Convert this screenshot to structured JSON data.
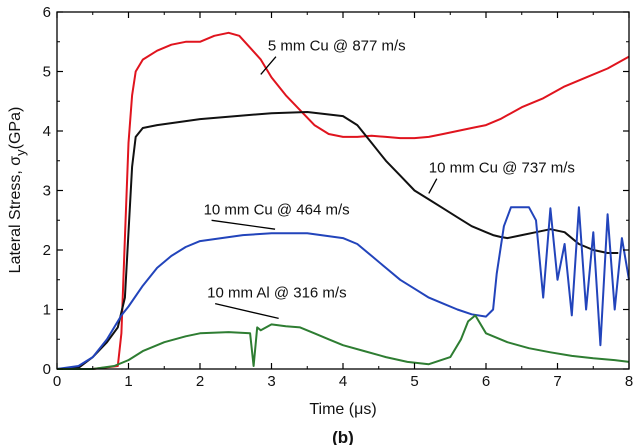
{
  "chart_data": {
    "type": "line",
    "xlabel": "Time (μs)",
    "ylabel": "Lateral Stress, σ",
    "ylabel_sub": "y",
    "ylabel_unit": "(GPa)",
    "xlim": [
      0,
      8
    ],
    "ylim": [
      0,
      6
    ],
    "x_ticks": [
      "0",
      "1",
      "2",
      "3",
      "4",
      "5",
      "6",
      "7",
      "8"
    ],
    "y_ticks": [
      "0",
      "1",
      "2",
      "3",
      "4",
      "5",
      "6"
    ],
    "panel_label": "(b)",
    "grid": false,
    "series": [
      {
        "name": "5 mm Cu @ 877 m/s",
        "color": "#e0141e",
        "x": [
          0,
          0.5,
          0.85,
          0.9,
          0.95,
          1.0,
          1.05,
          1.1,
          1.2,
          1.4,
          1.6,
          1.8,
          2.0,
          2.2,
          2.4,
          2.55,
          2.7,
          2.85,
          3.0,
          3.2,
          3.4,
          3.6,
          3.8,
          4.0,
          4.2,
          4.4,
          4.6,
          4.8,
          5.0,
          5.2,
          5.4,
          5.6,
          5.8,
          6.0,
          6.2,
          6.5,
          6.8,
          7.1,
          7.4,
          7.7,
          8.0
        ],
        "y": [
          0,
          0,
          0.05,
          0.6,
          2.2,
          3.8,
          4.6,
          5.0,
          5.2,
          5.35,
          5.45,
          5.5,
          5.5,
          5.6,
          5.65,
          5.6,
          5.4,
          5.2,
          4.9,
          4.6,
          4.35,
          4.1,
          3.95,
          3.9,
          3.9,
          3.92,
          3.9,
          3.88,
          3.88,
          3.9,
          3.95,
          4.0,
          4.05,
          4.1,
          4.2,
          4.4,
          4.55,
          4.75,
          4.9,
          5.05,
          5.25
        ]
      },
      {
        "name": "10 mm Cu @ 737 m/s",
        "color": "#111111",
        "x": [
          0,
          0.3,
          0.5,
          0.7,
          0.85,
          0.95,
          1.0,
          1.05,
          1.1,
          1.2,
          1.4,
          1.7,
          2.0,
          2.5,
          3.0,
          3.5,
          4.0,
          4.2,
          4.4,
          4.6,
          4.8,
          5.0,
          5.2,
          5.4,
          5.6,
          5.8,
          5.9,
          6.0,
          6.1,
          6.2,
          6.3,
          6.5,
          6.7,
          6.9,
          7.1,
          7.3,
          7.5,
          7.7,
          7.85
        ],
        "y": [
          0,
          0.02,
          0.2,
          0.45,
          0.7,
          1.2,
          2.3,
          3.4,
          3.9,
          4.05,
          4.1,
          4.15,
          4.2,
          4.25,
          4.3,
          4.32,
          4.25,
          4.1,
          3.8,
          3.5,
          3.25,
          3.0,
          2.85,
          2.7,
          2.55,
          2.4,
          2.35,
          2.3,
          2.25,
          2.22,
          2.2,
          2.25,
          2.3,
          2.35,
          2.3,
          2.1,
          2.0,
          1.95,
          1.95
        ]
      },
      {
        "name": "10 mm Cu @ 464 m/s",
        "color": "#2244bb",
        "x": [
          0,
          0.3,
          0.5,
          0.7,
          0.9,
          1.0,
          1.2,
          1.4,
          1.6,
          1.8,
          2.0,
          2.3,
          2.6,
          3.0,
          3.5,
          4.0,
          4.2,
          4.4,
          4.6,
          4.8,
          5.0,
          5.2,
          5.4,
          5.6,
          5.8,
          6.0,
          6.1,
          6.15,
          6.25,
          6.35,
          6.45,
          6.6,
          6.7,
          6.8,
          6.9,
          7.0,
          7.1,
          7.2,
          7.3,
          7.4,
          7.5,
          7.6,
          7.7,
          7.8,
          7.9,
          8.0
        ],
        "y": [
          0,
          0.05,
          0.2,
          0.5,
          0.9,
          1.05,
          1.4,
          1.7,
          1.9,
          2.05,
          2.15,
          2.2,
          2.25,
          2.28,
          2.28,
          2.2,
          2.1,
          1.9,
          1.7,
          1.5,
          1.35,
          1.2,
          1.1,
          1.0,
          0.92,
          0.88,
          1.0,
          1.6,
          2.4,
          2.72,
          2.72,
          2.72,
          2.5,
          1.2,
          2.7,
          1.5,
          2.1,
          0.9,
          2.72,
          1.0,
          2.3,
          0.4,
          2.6,
          1.0,
          2.2,
          1.5
        ]
      },
      {
        "name": "10 mm Al @ 316 m/s",
        "color": "#2e7d32",
        "x": [
          0,
          0.5,
          0.8,
          1.0,
          1.2,
          1.5,
          1.8,
          2.0,
          2.4,
          2.7,
          2.75,
          2.8,
          2.85,
          3.0,
          3.2,
          3.4,
          3.6,
          3.8,
          4.0,
          4.3,
          4.6,
          4.9,
          5.2,
          5.5,
          5.65,
          5.75,
          5.85,
          6.0,
          6.3,
          6.6,
          6.9,
          7.2,
          7.5,
          7.8,
          8.0
        ],
        "y": [
          0,
          0,
          0.05,
          0.15,
          0.3,
          0.45,
          0.55,
          0.6,
          0.62,
          0.6,
          0.05,
          0.7,
          0.65,
          0.75,
          0.72,
          0.7,
          0.6,
          0.5,
          0.4,
          0.3,
          0.2,
          0.12,
          0.08,
          0.2,
          0.5,
          0.8,
          0.9,
          0.6,
          0.45,
          0.35,
          0.28,
          0.22,
          0.18,
          0.15,
          0.12
        ]
      }
    ],
    "annotations": [
      {
        "text": "5 mm Cu @ 877 m/s",
        "label_x": 2.95,
        "label_y": 5.35,
        "arrow_to_x": 2.85,
        "arrow_to_y": 4.95
      },
      {
        "text": "10 mm Cu @ 737 m/s",
        "label_x": 5.2,
        "label_y": 3.3,
        "arrow_to_x": 5.2,
        "arrow_to_y": 2.95
      },
      {
        "text": "10 mm Cu @ 464 m/s",
        "label_x": 2.05,
        "label_y": 2.6,
        "arrow_to_x": 3.05,
        "arrow_to_y": 2.35
      },
      {
        "text": "10 mm Al @ 316 m/s",
        "label_x": 2.1,
        "label_y": 1.2,
        "arrow_to_x": 3.1,
        "arrow_to_y": 0.85
      }
    ]
  }
}
